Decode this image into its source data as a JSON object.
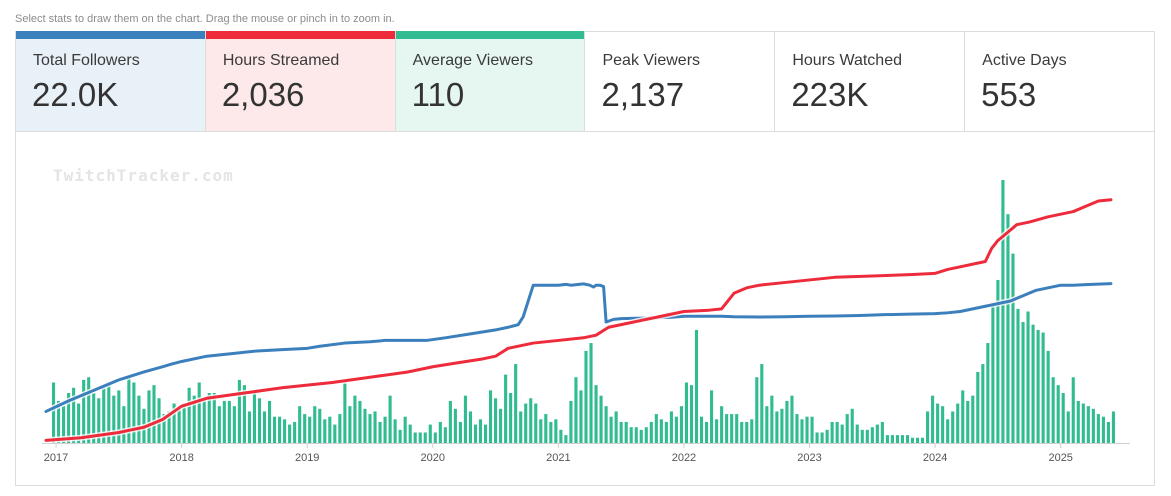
{
  "hint": "Select stats to draw them on the chart. Drag the mouse or pinch in to zoom in.",
  "watermark": "TwitchTracker.com",
  "stats": [
    {
      "label": "Total Followers",
      "value": "22.0K",
      "selected": true,
      "color": "#3c7fbd",
      "bg": "#e8f0f8"
    },
    {
      "label": "Hours Streamed",
      "value": "2,036",
      "selected": true,
      "color": "#ee2b3b",
      "bg": "#fde8ea"
    },
    {
      "label": "Average Viewers",
      "value": "110",
      "selected": true,
      "color": "#31bb91",
      "bg": "#e6f6f1"
    },
    {
      "label": "Peak Viewers",
      "value": "2,137",
      "selected": false,
      "color": "",
      "bg": "#ffffff"
    },
    {
      "label": "Hours Watched",
      "value": "223K",
      "selected": false,
      "color": "",
      "bg": "#ffffff"
    },
    {
      "label": "Active Days",
      "value": "553",
      "selected": false,
      "color": "",
      "bg": "#ffffff"
    }
  ],
  "chart_data": {
    "type": "bar",
    "x_domain": [
      2016.92,
      2025.52
    ],
    "x_ticks": [
      "2017",
      "2018",
      "2019",
      "2020",
      "2021",
      "2022",
      "2023",
      "2024",
      "2025"
    ],
    "x_tick_values": [
      2017,
      2018,
      2019,
      2020,
      2021,
      2022,
      2023,
      2024,
      2025
    ],
    "grid": false,
    "legend": "none",
    "series": [
      {
        "color": "#31bb91",
        "kind": "bar",
        "ylim": [
          0,
          100
        ],
        "x": [
          2016.98,
          2017.02,
          2017.06,
          2017.1,
          2017.14,
          2017.18,
          2017.22,
          2017.26,
          2017.3,
          2017.34,
          2017.38,
          2017.42,
          2017.46,
          2017.5,
          2017.54,
          2017.58,
          2017.62,
          2017.66,
          2017.7,
          2017.74,
          2017.78,
          2017.82,
          2017.86,
          2017.9,
          2017.94,
          2017.98,
          2018.02,
          2018.06,
          2018.1,
          2018.14,
          2018.18,
          2018.22,
          2018.26,
          2018.3,
          2018.34,
          2018.38,
          2018.42,
          2018.46,
          2018.5,
          2018.54,
          2018.58,
          2018.62,
          2018.66,
          2018.7,
          2018.74,
          2018.78,
          2018.82,
          2018.86,
          2018.9,
          2018.94,
          2018.98,
          2019.02,
          2019.06,
          2019.1,
          2019.14,
          2019.18,
          2019.22,
          2019.26,
          2019.3,
          2019.34,
          2019.38,
          2019.42,
          2019.46,
          2019.5,
          2019.54,
          2019.58,
          2019.62,
          2019.66,
          2019.7,
          2019.74,
          2019.78,
          2019.82,
          2019.86,
          2019.9,
          2019.94,
          2019.98,
          2020.02,
          2020.06,
          2020.1,
          2020.14,
          2020.18,
          2020.22,
          2020.26,
          2020.3,
          2020.34,
          2020.38,
          2020.42,
          2020.46,
          2020.5,
          2020.54,
          2020.58,
          2020.62,
          2020.66,
          2020.7,
          2020.74,
          2020.78,
          2020.82,
          2020.86,
          2020.9,
          2020.94,
          2020.98,
          2021.02,
          2021.06,
          2021.1,
          2021.14,
          2021.18,
          2021.22,
          2021.26,
          2021.3,
          2021.34,
          2021.38,
          2021.42,
          2021.46,
          2021.5,
          2021.54,
          2021.58,
          2021.62,
          2021.66,
          2021.7,
          2021.74,
          2021.78,
          2021.82,
          2021.86,
          2021.9,
          2021.94,
          2021.98,
          2022.02,
          2022.06,
          2022.1,
          2022.14,
          2022.18,
          2022.22,
          2022.26,
          2022.3,
          2022.34,
          2022.38,
          2022.42,
          2022.46,
          2022.5,
          2022.54,
          2022.58,
          2022.62,
          2022.66,
          2022.7,
          2022.74,
          2022.78,
          2022.82,
          2022.86,
          2022.9,
          2022.94,
          2022.98,
          2023.02,
          2023.06,
          2023.1,
          2023.14,
          2023.18,
          2023.22,
          2023.26,
          2023.3,
          2023.34,
          2023.38,
          2023.42,
          2023.46,
          2023.5,
          2023.54,
          2023.58,
          2023.62,
          2023.66,
          2023.7,
          2023.74,
          2023.78,
          2023.82,
          2023.86,
          2023.9,
          2023.94,
          2023.98,
          2024.02,
          2024.06,
          2024.1,
          2024.14,
          2024.18,
          2024.22,
          2024.26,
          2024.3,
          2024.34,
          2024.38,
          2024.42,
          2024.46,
          2024.5,
          2024.54,
          2024.58,
          2024.62,
          2024.66,
          2024.7,
          2024.74,
          2024.78,
          2024.82,
          2024.86,
          2024.9,
          2024.94,
          2024.98,
          2025.02,
          2025.06,
          2025.1,
          2025.14,
          2025.18,
          2025.22,
          2025.26,
          2025.3,
          2025.34,
          2025.38,
          2025.42
        ],
        "values": [
          23,
          16,
          14,
          19,
          21,
          15,
          24,
          25,
          19,
          17,
          21,
          23,
          18,
          20,
          14,
          25,
          23,
          18,
          13,
          20,
          22,
          17,
          11,
          12,
          15,
          13,
          15,
          21,
          18,
          23,
          16,
          19,
          19,
          14,
          16,
          16,
          14,
          24,
          22,
          12,
          19,
          17,
          12,
          16,
          10,
          10,
          9,
          7,
          8,
          14,
          11,
          10,
          14,
          13,
          9,
          10,
          7,
          11,
          23,
          14,
          18,
          16,
          13,
          11,
          12,
          8,
          10,
          18,
          9,
          5,
          10,
          7,
          4,
          4,
          4,
          7,
          4,
          8,
          6,
          16,
          13,
          8,
          18,
          12,
          7,
          9,
          7,
          20,
          17,
          13,
          26,
          19,
          30,
          12,
          15,
          17,
          15,
          9,
          11,
          8,
          9,
          5,
          3,
          16,
          25,
          20,
          35,
          38,
          22,
          18,
          14,
          10,
          12,
          8,
          8,
          6,
          6,
          5,
          6,
          8,
          11,
          9,
          8,
          12,
          10,
          14,
          23,
          22,
          43,
          10,
          8,
          20,
          9,
          14,
          11,
          11,
          11,
          8,
          8,
          9,
          25,
          30,
          14,
          18,
          12,
          13,
          16,
          18,
          11,
          9,
          10,
          10,
          4,
          4,
          5,
          8,
          8,
          7,
          11,
          13,
          7,
          5,
          5,
          6,
          7,
          8,
          3,
          3,
          3,
          3,
          3,
          2,
          2,
          2,
          12,
          18,
          15,
          14,
          9,
          12,
          15,
          20,
          16,
          18,
          27,
          30,
          38,
          53,
          62,
          100,
          87,
          72,
          51,
          46,
          50,
          45,
          43,
          42,
          35,
          25,
          22,
          19,
          12,
          25,
          16,
          15,
          14,
          13,
          11,
          10,
          8,
          12
        ]
      },
      {
        "color": "#3c7fbd",
        "kind": "line",
        "ylim": [
          0,
          100
        ],
        "x": [
          2016.92,
          2017.1,
          2017.3,
          2017.5,
          2017.7,
          2017.85,
          2017.92,
          2018.0,
          2018.2,
          2018.4,
          2018.6,
          2018.8,
          2019.0,
          2019.1,
          2019.3,
          2019.5,
          2019.62,
          2019.8,
          2019.95,
          2020.1,
          2020.3,
          2020.5,
          2020.6,
          2020.68,
          2020.72,
          2020.8,
          2020.9,
          2021.0,
          2021.06,
          2021.1,
          2021.2,
          2021.25,
          2021.28,
          2021.3,
          2021.33,
          2021.36,
          2021.38,
          2021.44,
          2021.5,
          2021.7,
          2021.9,
          2022.0,
          2022.1,
          2022.2,
          2022.3,
          2022.4,
          2022.6,
          2022.8,
          2023.0,
          2023.2,
          2023.4,
          2023.6,
          2023.8,
          2024.0,
          2024.1,
          2024.2,
          2024.3,
          2024.4,
          2024.5,
          2024.6,
          2024.7,
          2024.8,
          2024.9,
          2025.0,
          2025.1,
          2025.2,
          2025.3,
          2025.4
        ],
        "values": [
          12,
          16,
          20,
          24,
          27,
          29,
          30,
          31,
          33,
          34,
          35,
          35.5,
          36,
          36.8,
          38,
          38.5,
          39,
          39,
          39,
          40,
          41.5,
          43,
          44,
          45,
          48,
          60,
          60,
          60,
          60.3,
          60,
          60.5,
          60,
          59.3,
          60,
          60,
          59.5,
          46,
          47,
          47.3,
          47.5,
          47.8,
          48.2,
          48.2,
          48.2,
          48.2,
          48,
          47.9,
          48,
          48.2,
          48.3,
          48.5,
          48.8,
          49,
          49.2,
          49.5,
          50,
          51,
          52,
          53,
          54,
          56,
          58,
          59,
          60,
          60,
          60.2,
          60.4,
          60.6
        ]
      },
      {
        "color": "#ee2b3b",
        "kind": "line",
        "ylim": [
          0,
          100
        ],
        "x": [
          2016.92,
          2017.2,
          2017.5,
          2017.7,
          2017.85,
          2018.0,
          2018.2,
          2018.5,
          2018.8,
          2019.0,
          2019.2,
          2019.5,
          2019.8,
          2020.0,
          2020.2,
          2020.4,
          2020.5,
          2020.6,
          2020.7,
          2020.8,
          2021.0,
          2021.2,
          2021.3,
          2021.4,
          2021.6,
          2021.8,
          2022.0,
          2022.2,
          2022.3,
          2022.4,
          2022.5,
          2022.6,
          2022.8,
          2023.0,
          2023.2,
          2023.5,
          2023.8,
          2024.0,
          2024.1,
          2024.2,
          2024.4,
          2024.45,
          2024.5,
          2024.55,
          2024.6,
          2024.65,
          2024.75,
          2024.9,
          2025.0,
          2025.1,
          2025.2,
          2025.3,
          2025.4
        ],
        "values": [
          1,
          2,
          4,
          6,
          9,
          14,
          17,
          19,
          21,
          22,
          23,
          25,
          27,
          29,
          30.5,
          32,
          33,
          36,
          37,
          38,
          39,
          40,
          41,
          44,
          46,
          48,
          50,
          50.5,
          51,
          57,
          59,
          60,
          61,
          62,
          63,
          63.5,
          64,
          64.5,
          66,
          67,
          69,
          74,
          77,
          79,
          81,
          83,
          84,
          86,
          87,
          88,
          90,
          92,
          92.5
        ]
      }
    ]
  }
}
